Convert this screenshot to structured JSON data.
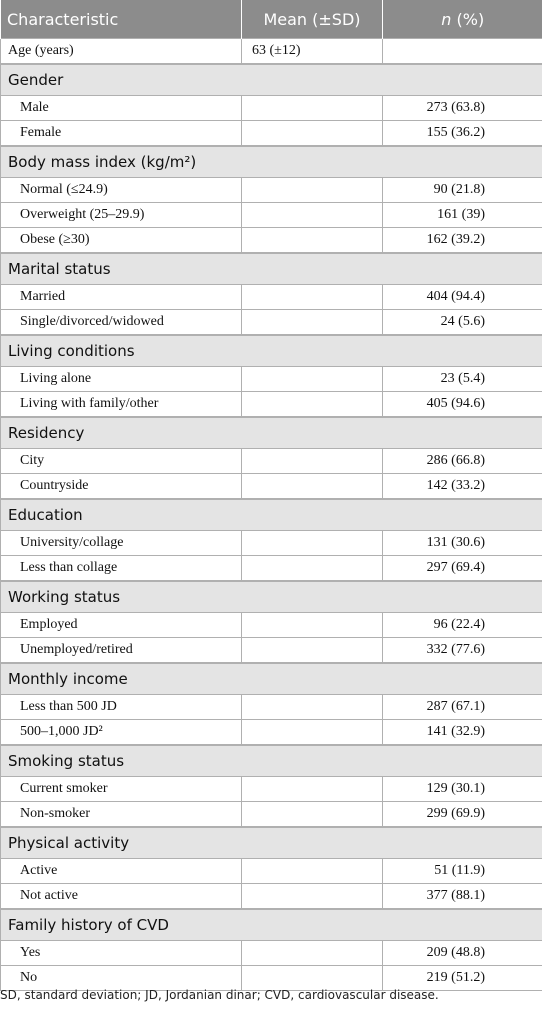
{
  "table": {
    "header": [
      "Characteristic",
      "Mean (±SD)",
      "n (%)"
    ],
    "rows": [
      {
        "label": "Age (years)",
        "mean": "63 (±12)"
      },
      {
        "section": "Gender"
      },
      {
        "label": "Male",
        "n": "273 (63.8)"
      },
      {
        "label": "Female",
        "n": "155 (36.2)"
      },
      {
        "section": "Body mass index (kg/m²)"
      },
      {
        "label": "Normal (≤24.9)",
        "n": "90 (21.8)"
      },
      {
        "label": "Overweight (25–29.9)",
        "n": "161 (39)"
      },
      {
        "label": "Obese (≥30)",
        "n": "162 (39.2)"
      },
      {
        "section": "Marital status"
      },
      {
        "label": "Married",
        "n": "404 (94.4)"
      },
      {
        "label": "Single/divorced/widowed",
        "n": "24 (5.6)"
      },
      {
        "section": "Living conditions"
      },
      {
        "label": "Living alone",
        "n": "23 (5.4)"
      },
      {
        "label": "Living with family/other",
        "n": "405 (94.6)"
      },
      {
        "section": "Residency"
      },
      {
        "label": "City",
        "n": "286 (66.8)"
      },
      {
        "label": "Countryside",
        "n": "142 (33.2)"
      },
      {
        "section": "Education"
      },
      {
        "label": "University/collage",
        "n": "131 (30.6)"
      },
      {
        "label": "Less than collage",
        "n": "297 (69.4)"
      },
      {
        "section": "Working status"
      },
      {
        "label": "Employed",
        "n": "96 (22.4)"
      },
      {
        "label": "Unemployed/retired",
        "n": "332 (77.6)"
      },
      {
        "section": "Monthly income"
      },
      {
        "label": "Less than 500 JD",
        "n": "287 (67.1)"
      },
      {
        "label": "500–1,000 JD²",
        "n": "141 (32.9)"
      },
      {
        "section": "Smoking status"
      },
      {
        "label": "Current smoker",
        "n": "129 (30.1)"
      },
      {
        "label": "Non-smoker",
        "n": "299 (69.9)"
      },
      {
        "section": "Physical activity"
      },
      {
        "label": "Active",
        "n": "51 (11.9)"
      },
      {
        "label": "Not active",
        "n": "377 (88.1)"
      },
      {
        "section": "Family history of CVD"
      },
      {
        "label": "Yes",
        "n": "209 (48.8)"
      },
      {
        "label": "No",
        "n": "219 (51.2)"
      }
    ]
  },
  "footnote": "SD, standard deviation; JD, Jordanian dinar; CVD, cardiovascular disease."
}
